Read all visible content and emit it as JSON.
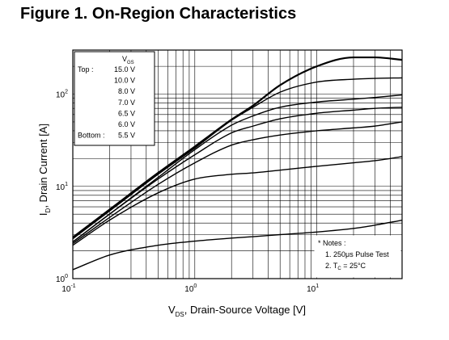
{
  "figure_title": "Figure 1. On-Region Characteristics",
  "chart_data": {
    "type": "line",
    "title": "Figure 1. On-Region Characteristics",
    "xlabel": {
      "main": "V",
      "sub": "DS",
      "rest": ", Drain-Source Voltage [V]"
    },
    "ylabel": {
      "main": "I",
      "sub": "D",
      "rest": ", Drain Current [A]"
    },
    "x_scale": "log",
    "y_scale": "log",
    "xlim": [
      0.1,
      50
    ],
    "ylim": [
      1,
      300
    ],
    "grid": true,
    "x_ticks": [
      {
        "base": "10",
        "exp": "-1",
        "value": 0.1
      },
      {
        "base": "10",
        "exp": "0",
        "value": 1
      },
      {
        "base": "10",
        "exp": "1",
        "value": 10
      }
    ],
    "y_ticks": [
      {
        "base": "10",
        "exp": "0",
        "value": 1
      },
      {
        "base": "10",
        "exp": "1",
        "value": 10
      },
      {
        "base": "10",
        "exp": "2",
        "value": 100
      }
    ],
    "legend": {
      "position": "top-left",
      "header": {
        "main": "V",
        "sub": "GS"
      },
      "top_label": "Top :",
      "bottom_label": "Bottom :"
    },
    "series": [
      {
        "name": "15.0 V",
        "x": [
          0.1,
          0.2,
          0.5,
          1,
          2,
          3,
          5,
          10,
          20,
          30,
          50
        ],
        "y": [
          2.8,
          5.6,
          14,
          27,
          53,
          75,
          125,
          200,
          250,
          250,
          235
        ]
      },
      {
        "name": "10.0 V",
        "x": [
          0.1,
          0.2,
          0.5,
          1,
          2,
          3,
          5,
          10,
          20,
          30,
          50
        ],
        "y": [
          2.7,
          5.4,
          13.5,
          26,
          52,
          72,
          105,
          135,
          145,
          148,
          150
        ]
      },
      {
        "name": "8.0 V",
        "x": [
          0.1,
          0.2,
          0.5,
          1,
          2,
          3,
          5,
          10,
          20,
          30,
          50
        ],
        "y": [
          2.5,
          5.0,
          12.5,
          25,
          46,
          58,
          72,
          82,
          88,
          92,
          98
        ]
      },
      {
        "name": "7.0 V",
        "x": [
          0.1,
          0.2,
          0.5,
          1,
          2,
          3,
          5,
          10,
          20,
          30,
          50
        ],
        "y": [
          2.5,
          5.0,
          12,
          22,
          38,
          45,
          54,
          62,
          67,
          70,
          72
        ]
      },
      {
        "name": "6.5 V",
        "x": [
          0.1,
          0.2,
          0.5,
          1,
          2,
          3,
          5,
          10,
          20,
          30,
          50
        ],
        "y": [
          2.4,
          4.6,
          10.5,
          18,
          28,
          32,
          36,
          40,
          43,
          45,
          50
        ]
      },
      {
        "name": "6.0 V",
        "x": [
          0.1,
          0.2,
          0.5,
          1,
          2,
          3,
          5,
          10,
          20,
          30,
          50
        ],
        "y": [
          2.3,
          4.3,
          8.5,
          12,
          13.5,
          14,
          15,
          16.5,
          18,
          19,
          21
        ]
      },
      {
        "name": "5.5 V",
        "x": [
          0.1,
          0.2,
          0.5,
          1,
          2,
          3,
          5,
          10,
          20,
          30,
          50
        ],
        "y": [
          1.25,
          1.8,
          2.3,
          2.55,
          2.75,
          2.85,
          3.0,
          3.2,
          3.5,
          3.8,
          4.3
        ]
      }
    ],
    "annotations": {
      "notes_title": "* Notes :",
      "note1_prefix": "1. 250",
      "note1_mu": "μ",
      "note1_suffix": "s Pulse Test",
      "note2_prefix": "2. T",
      "note2_sub": "C",
      "note2_suffix": " = 25°C"
    }
  }
}
